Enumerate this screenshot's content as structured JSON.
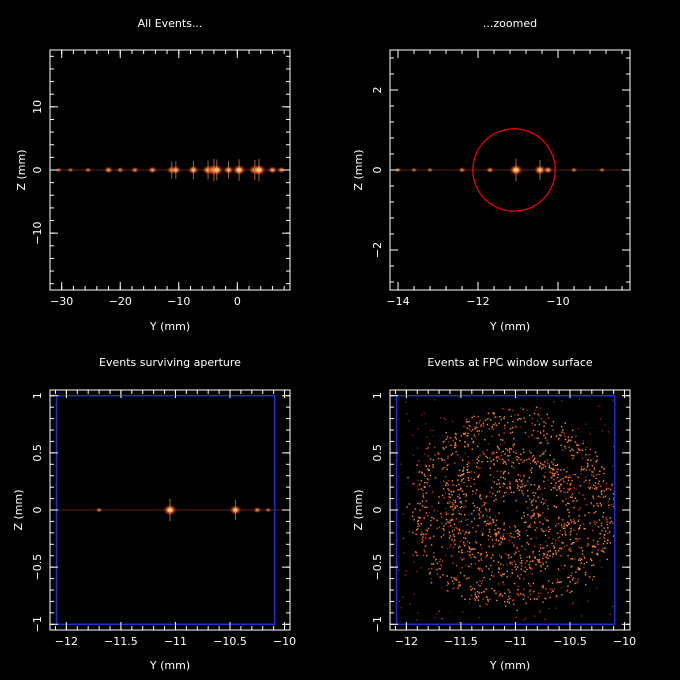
{
  "chart_data": [
    {
      "type": "scatter",
      "title": "All Events...",
      "xlabel": "Y (mm)",
      "ylabel": "Z (mm)",
      "xlim": [
        -32,
        9
      ],
      "ylim": [
        -19,
        19
      ],
      "xticks": [
        -30,
        -20,
        -10,
        0
      ],
      "xtick_labels": [
        "−30",
        "−20",
        "−10",
        "0"
      ],
      "yticks": [
        -10,
        0,
        10
      ],
      "ytick_labels": [
        "−10",
        "0",
        "10"
      ],
      "grid": false,
      "point_color": "#ff9040",
      "series": [
        {
          "style": "spots",
          "points": [
            {
              "x": -30.5,
              "y": 0,
              "i": 0.3
            },
            {
              "x": -28.5,
              "y": 0,
              "i": 0.3
            },
            {
              "x": -25.5,
              "y": 0,
              "i": 0.35
            },
            {
              "x": -22.0,
              "y": 0,
              "i": 0.55
            },
            {
              "x": -20.0,
              "y": 0,
              "i": 0.4
            },
            {
              "x": -17.5,
              "y": 0,
              "i": 0.45
            },
            {
              "x": -14.5,
              "y": 0,
              "i": 0.55
            },
            {
              "x": -11.2,
              "y": 0,
              "i": 0.65
            },
            {
              "x": -10.5,
              "y": 0,
              "i": 0.7
            },
            {
              "x": -7.5,
              "y": 0,
              "i": 0.75
            },
            {
              "x": -5.0,
              "y": 0,
              "i": 0.8
            },
            {
              "x": -4.0,
              "y": 0,
              "i": 1.0
            },
            {
              "x": -3.5,
              "y": 0,
              "i": 0.9
            },
            {
              "x": -1.5,
              "y": 0,
              "i": 0.7
            },
            {
              "x": 0.3,
              "y": 0,
              "i": 0.95
            },
            {
              "x": 3.0,
              "y": 0,
              "i": 0.85
            },
            {
              "x": 3.7,
              "y": 0,
              "i": 1.0
            },
            {
              "x": 6.0,
              "y": 0,
              "i": 0.6
            },
            {
              "x": 7.5,
              "y": 0,
              "i": 0.5
            }
          ]
        }
      ]
    },
    {
      "type": "scatter",
      "title": "...zoomed",
      "xlabel": "Y (mm)",
      "ylabel": "Z (mm)",
      "xlim": [
        -14.2,
        -8.2
      ],
      "ylim": [
        -3,
        3
      ],
      "xticks": [
        -14,
        -12,
        -10
      ],
      "xtick_labels": [
        "−14",
        "−12",
        "−10"
      ],
      "yticks": [
        -2,
        0,
        2
      ],
      "ytick_labels": [
        "−2",
        "0",
        "2"
      ],
      "grid": false,
      "point_color": "#ff9040",
      "aperture_circle": {
        "center": [
          -11.1,
          0
        ],
        "radius": 1.03,
        "color": "#ff0000"
      },
      "series": [
        {
          "style": "spots",
          "points": [
            {
              "x": -14.0,
              "y": 0,
              "i": 0.35
            },
            {
              "x": -13.6,
              "y": 0,
              "i": 0.3
            },
            {
              "x": -13.2,
              "y": 0,
              "i": 0.3
            },
            {
              "x": -12.4,
              "y": 0,
              "i": 0.4
            },
            {
              "x": -11.7,
              "y": 0,
              "i": 0.45
            },
            {
              "x": -11.05,
              "y": 0,
              "i": 1.0
            },
            {
              "x": -10.45,
              "y": 0,
              "i": 0.85
            },
            {
              "x": -10.25,
              "y": 0,
              "i": 0.6
            },
            {
              "x": -9.6,
              "y": 0,
              "i": 0.35
            },
            {
              "x": -8.9,
              "y": 0,
              "i": 0.3
            }
          ]
        }
      ]
    },
    {
      "type": "scatter",
      "title": "Events surviving aperture",
      "xlabel": "Y (mm)",
      "ylabel": "Z (mm)",
      "xlim": [
        -12.15,
        -9.95
      ],
      "ylim": [
        -1.05,
        1.05
      ],
      "xticks": [
        -12,
        -11.5,
        -11,
        -10.5,
        -10
      ],
      "xtick_labels": [
        "−12",
        "−11.5",
        "−11",
        "−10.5",
        "−10"
      ],
      "yticks": [
        -1,
        -0.5,
        0,
        0.5,
        1
      ],
      "ytick_labels": [
        "−1",
        "−0.5",
        "0",
        "0.5",
        "1"
      ],
      "grid": false,
      "point_color": "#ff9040",
      "window_box": {
        "x": [
          -12.09,
          -10.09
        ],
        "y": [
          -1.0,
          1.0
        ],
        "color": "#1a2fd6"
      },
      "series": [
        {
          "style": "spots",
          "points": [
            {
              "x": -11.7,
              "y": 0,
              "i": 0.35
            },
            {
              "x": -11.05,
              "y": 0,
              "i": 1.0
            },
            {
              "x": -10.45,
              "y": 0,
              "i": 0.85
            },
            {
              "x": -10.25,
              "y": 0,
              "i": 0.45
            },
            {
              "x": -10.15,
              "y": 0,
              "i": 0.3
            }
          ]
        }
      ]
    },
    {
      "type": "scatter",
      "title": "Events at FPC window surface",
      "xlabel": "Y (mm)",
      "ylabel": "Z (mm)",
      "xlim": [
        -12.15,
        -9.95
      ],
      "ylim": [
        -1.05,
        1.05
      ],
      "xticks": [
        -12,
        -11.5,
        -11,
        -10.5,
        -10
      ],
      "xtick_labels": [
        "−12",
        "−11.5",
        "−11",
        "−10.5",
        "−10"
      ],
      "yticks": [
        -1,
        -0.5,
        0,
        0.5,
        1
      ],
      "ytick_labels": [
        "−1",
        "−0.5",
        "0",
        "0.5",
        "1"
      ],
      "grid": false,
      "point_color": "#ff9040",
      "window_box": {
        "x": [
          -12.09,
          -10.09
        ],
        "y": [
          -1.0,
          1.0
        ],
        "color": "#1a2fd6"
      },
      "series": [
        {
          "style": "ring-scatter",
          "center": [
            -11.05,
            0
          ],
          "rings": [
            {
              "radius": 0.28,
              "count": 260
            },
            {
              "radius": 0.55,
              "count": 620
            },
            {
              "radius": 0.85,
              "count": 700
            }
          ],
          "background_count": 260
        }
      ]
    }
  ]
}
